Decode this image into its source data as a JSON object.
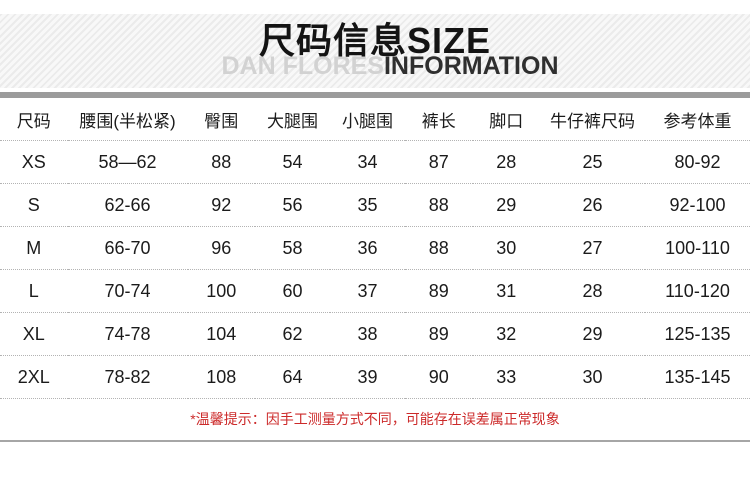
{
  "banner": {
    "title_cn": "尺码信息",
    "title_en": "SIZE",
    "subtitle_light": "DAN FLORES",
    "subtitle_dark": "INFORMATION"
  },
  "table": {
    "columns": [
      "尺码",
      "腰围(半松紧)",
      "臀围",
      "大腿围",
      "小腿围",
      "裤长",
      "脚口",
      "牛仔裤尺码",
      "参考体重"
    ],
    "col_widths_percent": [
      9,
      16,
      9,
      10,
      10,
      9,
      9,
      14,
      14
    ],
    "rows": [
      [
        "XS",
        "58—62",
        "88",
        "54",
        "34",
        "87",
        "28",
        "25",
        "80-92"
      ],
      [
        "S",
        "62-66",
        "92",
        "56",
        "35",
        "88",
        "29",
        "26",
        "92-100"
      ],
      [
        "M",
        "66-70",
        "96",
        "58",
        "36",
        "88",
        "30",
        "27",
        "100-110"
      ],
      [
        "L",
        "70-74",
        "100",
        "60",
        "37",
        "89",
        "31",
        "28",
        "110-120"
      ],
      [
        "XL",
        "74-78",
        "104",
        "62",
        "38",
        "89",
        "32",
        "29",
        "125-135"
      ],
      [
        "2XL",
        "78-82",
        "108",
        "64",
        "39",
        "90",
        "33",
        "30",
        "135-145"
      ]
    ]
  },
  "note": {
    "text": "*温馨提示：因手工测量方式不同，可能存在误差属正常现象",
    "color": "#cc2a2a"
  }
}
